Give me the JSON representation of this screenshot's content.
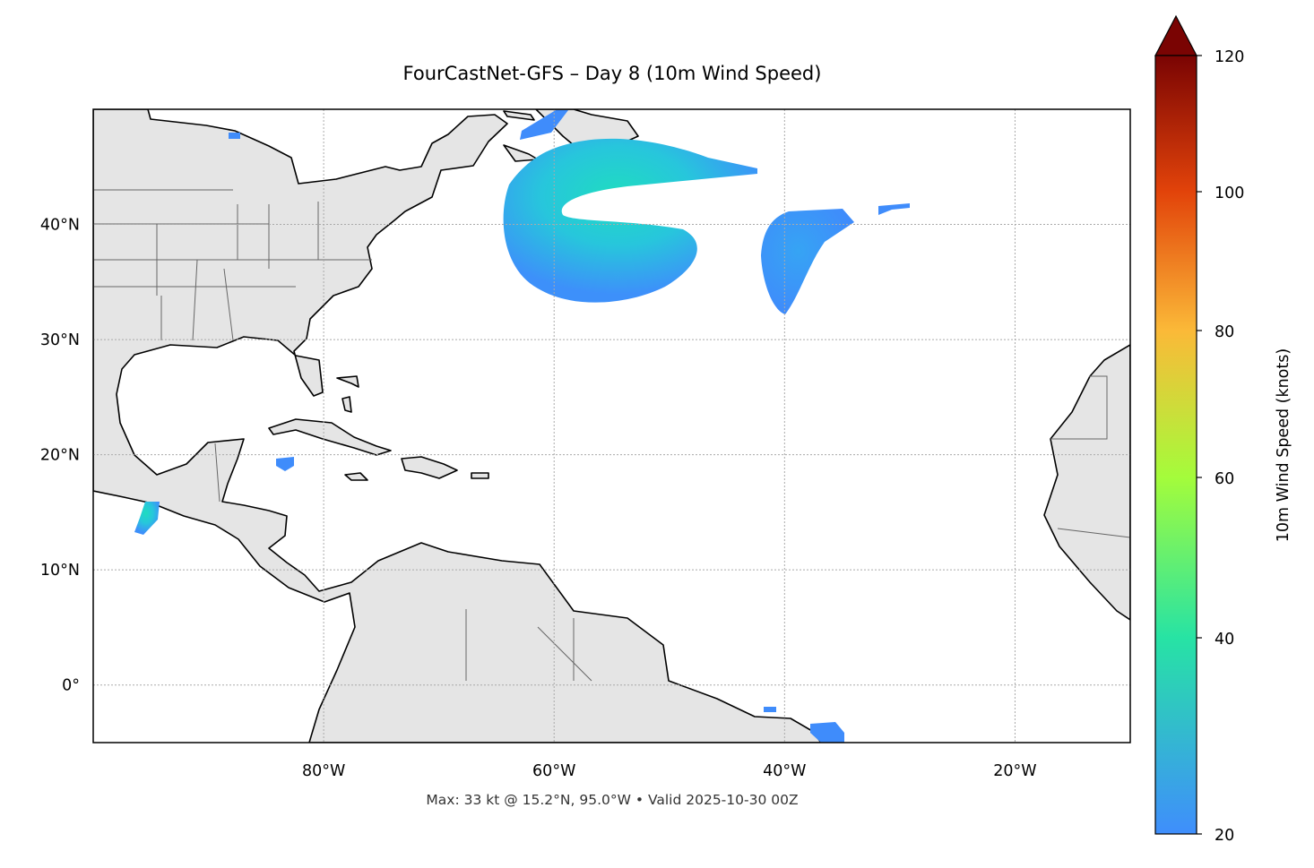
{
  "title": "FourCastNet-GFS – Day 8 (10m Wind Speed)",
  "footer": "Max: 33 kt @ 15.2°N, 95.0°W • Valid 2025-10-30 00Z",
  "chart_data": {
    "type": "map",
    "title": "FourCastNet-GFS – Day 8 (10m Wind Speed)",
    "variable": "10m Wind Speed",
    "extent": {
      "lon": [
        -100,
        -10
      ],
      "lat": [
        -5,
        50
      ]
    },
    "lon_ticks": [
      -80,
      -60,
      -40,
      -20
    ],
    "lon_tick_labels": [
      "80°W",
      "60°W",
      "40°W",
      "20°W"
    ],
    "lat_ticks": [
      0,
      10,
      20,
      30,
      40
    ],
    "lat_tick_labels": [
      "0°",
      "10°N",
      "20°N",
      "30°N",
      "40°N"
    ],
    "grid": true,
    "colorbar": {
      "label": "10m Wind Speed (knots)",
      "range": [
        20,
        120
      ],
      "extend": "max",
      "ticks": [
        20,
        40,
        60,
        80,
        100,
        120
      ],
      "tick_labels": [
        "20",
        "40",
        "60",
        "80",
        "100",
        "120"
      ],
      "colors": [
        "#3f8efc",
        "#27e3a4",
        "#a4fc3b",
        "#fbb938",
        "#e2430a",
        "#7a0403"
      ]
    },
    "max": {
      "value_kt": 33,
      "lat": 15.2,
      "lon": -95.0
    },
    "valid": "2025-10-30 00Z",
    "land_color": "#e5e5e5"
  }
}
